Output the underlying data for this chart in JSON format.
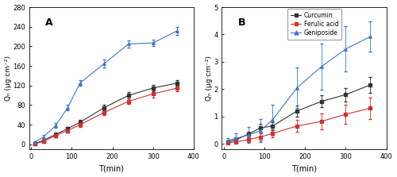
{
  "x_A": [
    10,
    30,
    60,
    90,
    120,
    180,
    240,
    300,
    360
  ],
  "x_B": [
    10,
    30,
    60,
    90,
    120,
    180,
    240,
    300,
    360
  ],
  "A": {
    "curcumin": [
      2,
      8,
      20,
      32,
      45,
      75,
      100,
      115,
      125
    ],
    "curcumin_err": [
      2,
      3,
      4,
      4,
      5,
      5,
      6,
      7,
      6
    ],
    "ferulic": [
      1,
      6,
      18,
      28,
      40,
      65,
      88,
      103,
      115
    ],
    "ferulic_err": [
      1,
      3,
      4,
      4,
      4,
      5,
      6,
      7,
      7
    ],
    "geniposide": [
      5,
      15,
      38,
      75,
      125,
      165,
      205,
      207,
      232
    ],
    "geniposide_err": [
      2,
      4,
      5,
      5,
      6,
      8,
      7,
      7,
      8
    ],
    "ylim": [
      -10,
      280
    ],
    "yticks": [
      0,
      40,
      80,
      120,
      160,
      200,
      240,
      280
    ],
    "ylabel": "Qₙ (μg·cm⁻²)"
  },
  "B": {
    "curcumin": [
      0.06,
      0.15,
      0.35,
      0.58,
      0.65,
      1.2,
      1.55,
      1.8,
      2.15
    ],
    "curcumin_err": [
      0.05,
      0.08,
      0.1,
      0.15,
      0.15,
      0.2,
      0.22,
      0.25,
      0.3
    ],
    "ferulic": [
      0.04,
      0.07,
      0.15,
      0.25,
      0.38,
      0.65,
      0.82,
      1.08,
      1.3
    ],
    "ferulic_err": [
      0.03,
      0.05,
      0.08,
      0.12,
      0.15,
      0.22,
      0.28,
      0.35,
      0.4
    ],
    "geniposide": [
      0.12,
      0.2,
      0.32,
      0.48,
      0.88,
      2.05,
      2.82,
      3.47,
      3.92
    ],
    "geniposide_err": [
      0.1,
      0.18,
      0.28,
      0.42,
      0.55,
      0.75,
      0.85,
      0.82,
      0.55
    ],
    "ylim": [
      -0.2,
      5
    ],
    "yticks": [
      0,
      1,
      2,
      3,
      4,
      5
    ],
    "ylabel": "Qₙ (μg·cm⁻²)"
  },
  "xlabel": "T(min)",
  "xlim": [
    -5,
    400
  ],
  "xticks": [
    0,
    100,
    200,
    300,
    400
  ],
  "curcumin_color": "#333333",
  "ferulic_color": "#cc3333",
  "geniposide_color": "#4477bb",
  "legend_labels": [
    "Curcumin",
    "Ferulic acid",
    "Geniposide"
  ],
  "label_A": "A",
  "label_B": "B"
}
